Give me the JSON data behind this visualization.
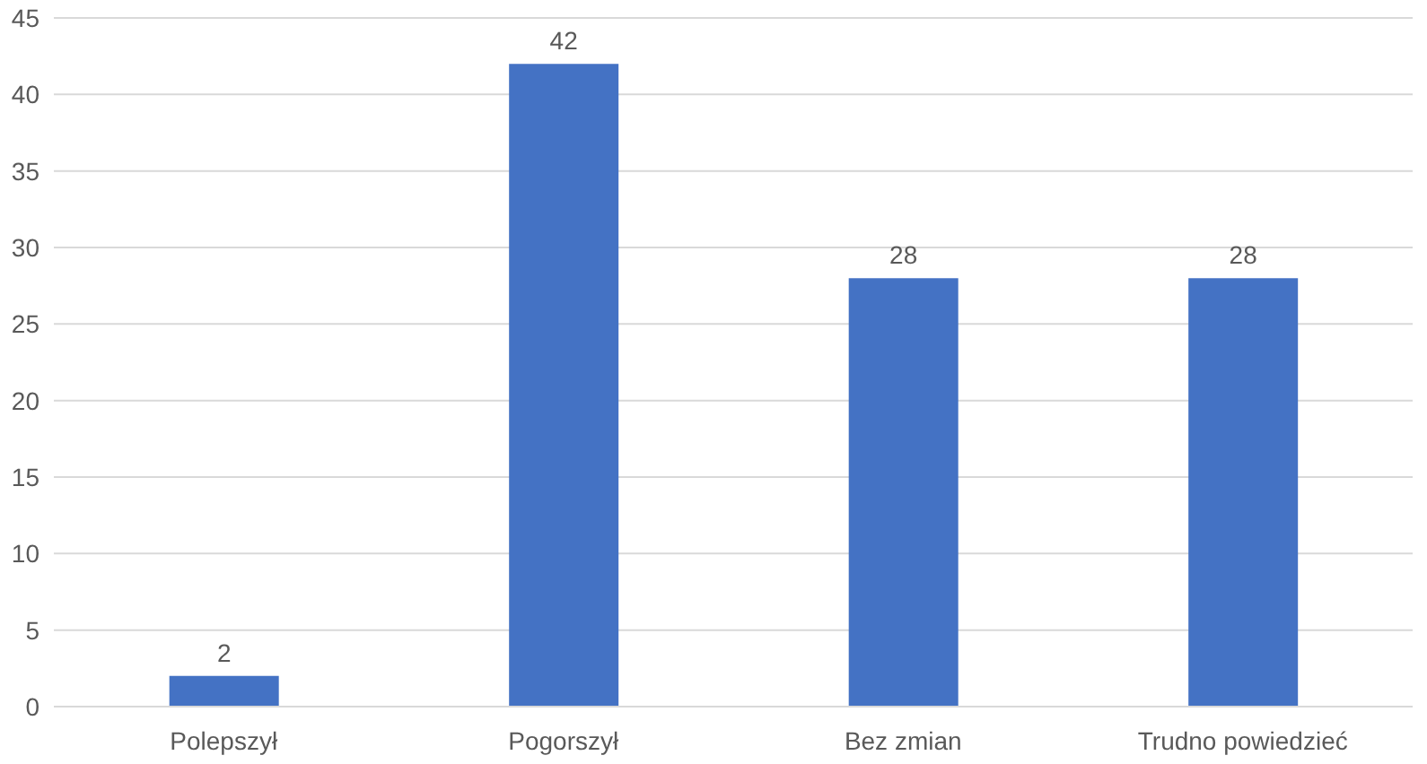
{
  "chart_data": {
    "type": "bar",
    "categories": [
      "Polepszył",
      "Pogorszył",
      "Bez zmian",
      "Trudno powiedzieć"
    ],
    "values": [
      2,
      42,
      28,
      28
    ],
    "color": "#4472c4",
    "ylim": [
      0,
      45
    ],
    "yticks": [
      0,
      5,
      10,
      15,
      20,
      25,
      30,
      35,
      40,
      45
    ],
    "grid": "y",
    "data_labels": true
  }
}
